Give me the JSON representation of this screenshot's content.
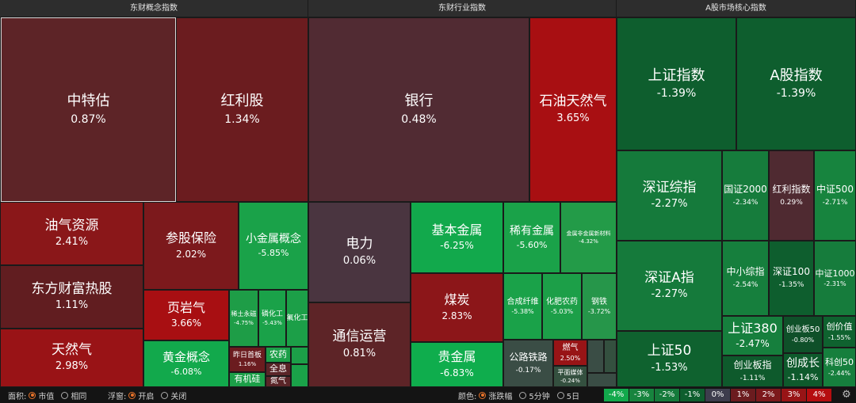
{
  "headers": {
    "concept": "东财概念指数",
    "industry": "东财行业指数",
    "core": "A股市场核心指数"
  },
  "tiles": {
    "zhongte": {
      "name": "中特估",
      "pct": "0.87%",
      "color": "#5d2427"
    },
    "hongli": {
      "name": "红利股",
      "pct": "1.34%",
      "color": "#6b1c1f"
    },
    "youqi": {
      "name": "油气资源",
      "pct": "2.41%",
      "color": "#8a1719"
    },
    "dongfang": {
      "name": "东方财富热股",
      "pct": "1.11%",
      "color": "#611d20"
    },
    "tianranqi": {
      "name": "天然气",
      "pct": "2.98%",
      "color": "#991316"
    },
    "canguBaoxian": {
      "name": "参股保险",
      "pct": "2.02%",
      "color": "#7c191c"
    },
    "xiaojinshu": {
      "name": "小金属概念",
      "pct": "-5.85%",
      "color": "#1aa249"
    },
    "yeyanqi": {
      "name": "页岩气",
      "pct": "3.66%",
      "color": "#a80f12"
    },
    "xitu": {
      "name": "稀土永磁",
      "pct": "-4.75%",
      "color": "#1e9d47"
    },
    "linhuagong": {
      "name": "磷化工",
      "pct": "-5.43%",
      "color": "#1aa249"
    },
    "fuhuagong": {
      "name": "氟化工",
      "pct": "",
      "color": "#1c9f48"
    },
    "huangjin": {
      "name": "黄金概念",
      "pct": "-6.08%",
      "color": "#12a94c"
    },
    "zuoridaban": {
      "name": "昨日首板",
      "pct": "1.16%",
      "color": "#6b1c1f"
    },
    "nongyao": {
      "name": "农药",
      "pct": "",
      "color": "#1c9f48"
    },
    "quanxi": {
      "name": "全息",
      "pct": "",
      "color": "#5a2528"
    },
    "youjigui": {
      "name": "有机硅",
      "pct": "",
      "color": "#1c9f48"
    },
    "danqi": {
      "name": "氮气",
      "pct": "",
      "color": "#5a2528"
    },
    "yinhang": {
      "name": "银行",
      "pct": "0.48%",
      "color": "#512b33"
    },
    "shiyou": {
      "name": "石油天然气",
      "pct": "3.65%",
      "color": "#a80f12"
    },
    "dianli": {
      "name": "电力",
      "pct": "0.06%",
      "color": "#4a3540"
    },
    "jibenjinshu": {
      "name": "基本金属",
      "pct": "-6.25%",
      "color": "#12a94c"
    },
    "xiyoujinshu": {
      "name": "稀有金属",
      "pct": "-5.60%",
      "color": "#1aa249"
    },
    "feijinshu": {
      "name": "金属非金属新材料",
      "pct": "-4.32%",
      "color": "#239b48"
    },
    "meitan": {
      "name": "煤炭",
      "pct": "2.83%",
      "color": "#8c1619"
    },
    "tongxin": {
      "name": "通信运营",
      "pct": "0.81%",
      "color": "#5d2427"
    },
    "guijinshu": {
      "name": "贵金属",
      "pct": "-6.83%",
      "color": "#0fad4d"
    },
    "hecheng": {
      "name": "合成纤维",
      "pct": "-5.38%",
      "color": "#1aa249"
    },
    "huafei": {
      "name": "化肥农药",
      "pct": "-5.03%",
      "color": "#1c9f48"
    },
    "gangtie": {
      "name": "钢铁",
      "pct": "-3.72%",
      "color": "#26964a"
    },
    "gonglu": {
      "name": "公路铁路",
      "pct": "-0.17%",
      "color": "#3a4d45"
    },
    "ranqi": {
      "name": "燃气",
      "pct": "2.50%",
      "color": "#981416"
    },
    "pingmian": {
      "name": "平面媒体",
      "pct": "-0.24%",
      "color": "#34503f"
    },
    "shangzheng": {
      "name": "上证指数",
      "pct": "-1.39%",
      "color": "#0e5e2e"
    },
    "agu": {
      "name": "A股指数",
      "pct": "-1.39%",
      "color": "#0e5e2e"
    },
    "shenzhengzong": {
      "name": "深证综指",
      "pct": "-2.27%",
      "color": "#157a3b"
    },
    "guozheng2000": {
      "name": "国证2000",
      "pct": "-2.34%",
      "color": "#167c3c"
    },
    "honglizhishu": {
      "name": "红利指数",
      "pct": "0.29%",
      "color": "#4f2a31"
    },
    "zhongzheng500": {
      "name": "中证500",
      "pct": "-2.71%",
      "color": "#17843e"
    },
    "shenzhenga": {
      "name": "深证A指",
      "pct": "-2.27%",
      "color": "#157a3b"
    },
    "zhongxiao": {
      "name": "中小综指",
      "pct": "-2.54%",
      "color": "#167f3d"
    },
    "shenzheng100": {
      "name": "深证100",
      "pct": "-1.35%",
      "color": "#0e5e2e"
    },
    "zhongzheng1000": {
      "name": "中证1000",
      "pct": "-2.31%",
      "color": "#167c3c"
    },
    "shangzheng50": {
      "name": "上证50",
      "pct": "-1.53%",
      "color": "#0f622f"
    },
    "shangzheng380": {
      "name": "上证380",
      "pct": "-2.47%",
      "color": "#167f3d"
    },
    "chuangyeban50": {
      "name": "创业板50",
      "pct": "-0.80%",
      "color": "#0f5029"
    },
    "chuangxinzhi": {
      "name": "创价值",
      "pct": "-1.55%",
      "color": "#0f622f"
    },
    "chuangyebanzhi": {
      "name": "创业板指",
      "pct": "-1.11%",
      "color": "#0e5a2c"
    },
    "chuangchengzhang": {
      "name": "创成长",
      "pct": "-1.14%",
      "color": "#0e5a2c"
    },
    "kechuang50": {
      "name": "科创50",
      "pct": "-2.44%",
      "color": "#167f3d"
    }
  },
  "footer": {
    "area_label": "面积:",
    "area_opt1": "市值",
    "area_opt2": "相同",
    "float_label": "浮窗:",
    "float_opt1": "开启",
    "float_opt2": "关闭",
    "color_label": "颜色:",
    "color_opt1": "涨跌幅",
    "color_opt2": "5分钟",
    "color_opt3": "5日",
    "legend": [
      {
        "label": "-4%",
        "color": "#12a94c"
      },
      {
        "label": "-3%",
        "color": "#17843e"
      },
      {
        "label": "-2%",
        "color": "#157a3b"
      },
      {
        "label": "-1%",
        "color": "#0e5e2e"
      },
      {
        "label": "0%",
        "color": "#3d3d4d"
      },
      {
        "label": "1%",
        "color": "#6b1c1f"
      },
      {
        "label": "2%",
        "color": "#7c191c"
      },
      {
        "label": "3%",
        "color": "#981416"
      },
      {
        "label": "4%",
        "color": "#b50d10"
      }
    ],
    "settings_icon": "⚙"
  }
}
